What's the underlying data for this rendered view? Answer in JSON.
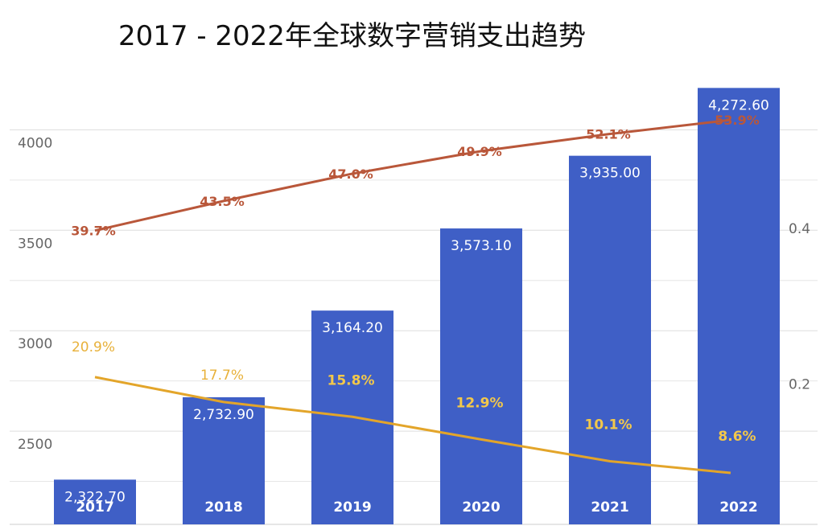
{
  "chart_data": {
    "type": "bar",
    "title": "2017 - 2022年全球数字营销支出趋势",
    "categories": [
      "2017",
      "2018",
      "2019",
      "2020",
      "2021",
      "2022"
    ],
    "series": [
      {
        "kind": "bar",
        "axis": "left",
        "values": [
          2322.7,
          2732.9,
          3164.2,
          3573.1,
          3935.0,
          4272.6
        ],
        "value_labels": [
          "2,322.70",
          "2,732.90",
          "3,164.20",
          "3,573.10",
          "3,935.00",
          "4,272.60"
        ],
        "color": "#3f5fc6"
      },
      {
        "kind": "line",
        "axis": "right",
        "values": [
          0.397,
          0.435,
          0.47,
          0.499,
          0.521,
          0.539
        ],
        "value_labels": [
          "39.7%",
          "43.5%",
          "47.0%",
          "49.9%",
          "52.1%",
          "53.9%"
        ],
        "color": "#b9573a"
      },
      {
        "kind": "line",
        "axis": "right",
        "values": [
          0.209,
          0.177,
          0.158,
          0.129,
          0.101,
          0.086
        ],
        "value_labels": [
          "20.9%",
          "17.7%",
          "15.8%",
          "12.9%",
          "10.1%",
          "8.6%"
        ],
        "color": "#e3a52a"
      }
    ],
    "y_left": {
      "ticks": [
        "4000",
        "3500",
        "3000",
        "2500"
      ],
      "tick_values": [
        4000,
        3500,
        3000,
        2500
      ],
      "ylim": [
        2100,
        4350
      ]
    },
    "y_right": {
      "ticks": [
        "0.4",
        "0.2"
      ],
      "tick_values": [
        0.4,
        0.2
      ],
      "ylim": [
        0.02,
        0.6
      ]
    },
    "grid": true
  }
}
